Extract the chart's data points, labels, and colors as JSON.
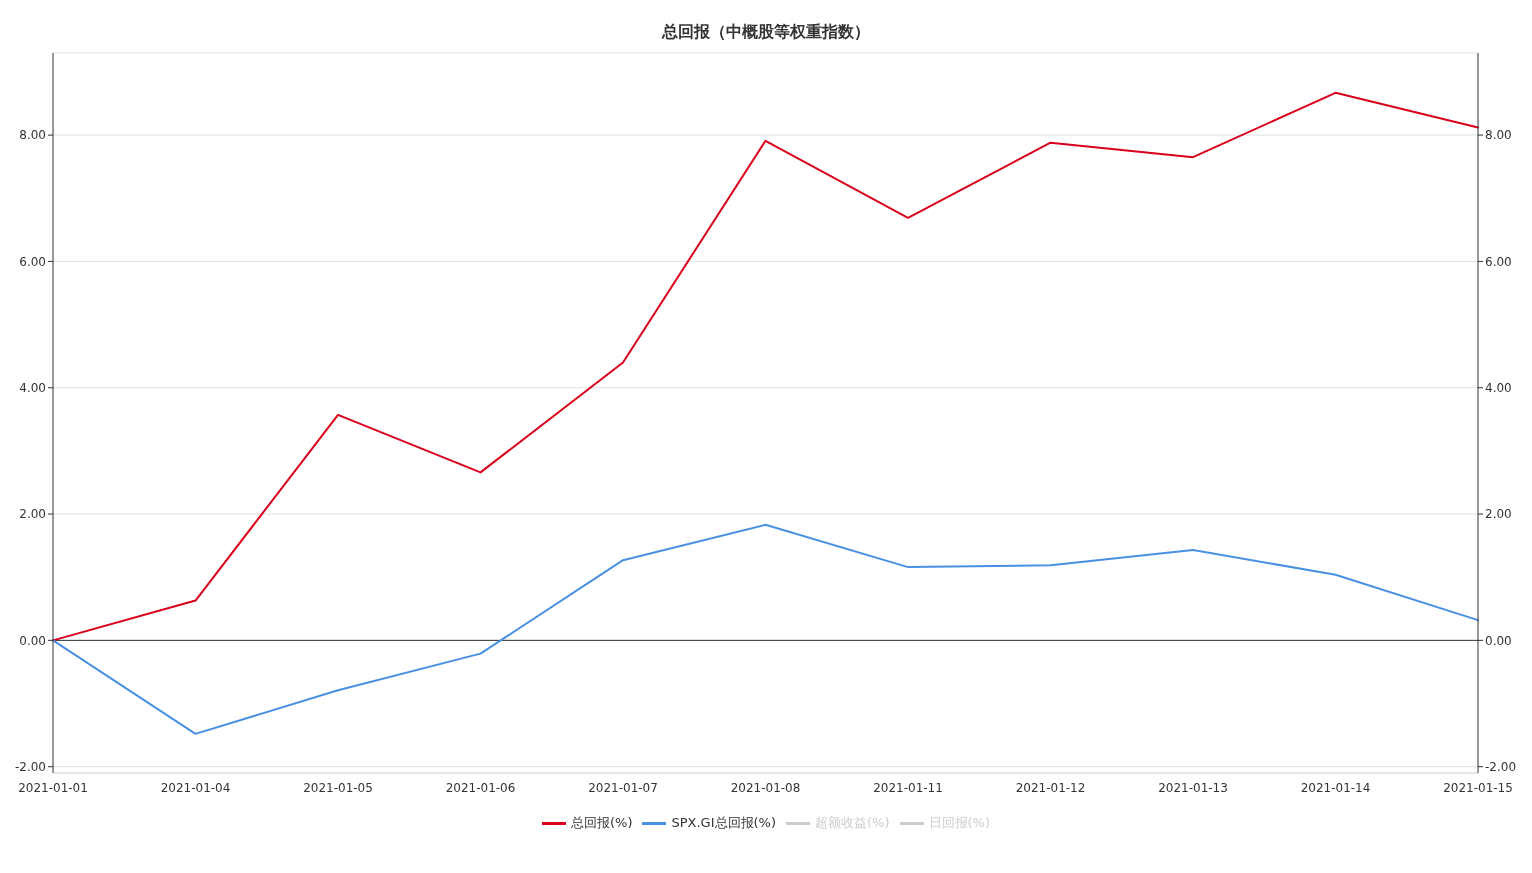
{
  "chart_data": {
    "type": "line",
    "title": "总回报（中概股等权重指数）",
    "categories": [
      "2021-01-01",
      "2021-01-04",
      "2021-01-05",
      "2021-01-06",
      "2021-01-07",
      "2021-01-08",
      "2021-01-11",
      "2021-01-12",
      "2021-01-13",
      "2021-01-14",
      "2021-01-15"
    ],
    "series": [
      {
        "name": "总回报(%)",
        "color": "#d9001b",
        "values": [
          0,
          0.63,
          3.57,
          2.66,
          4.4,
          7.91,
          6.69,
          7.88,
          7.65,
          8.67,
          8.12
        ]
      },
      {
        "name": "SPX.GI总回报(%)",
        "color": "#4a90e2",
        "values": [
          0,
          -1.48,
          -0.79,
          -0.21,
          1.27,
          1.83,
          1.16,
          1.19,
          1.43,
          1.04,
          0.32
        ]
      },
      {
        "name": "超额收益(%)",
        "color": "#cccccc",
        "values": [
          null,
          null,
          null,
          null,
          null,
          null,
          null,
          null,
          null,
          null,
          null
        ]
      },
      {
        "name": "日回报(%)",
        "color": "#cccccc",
        "values": [
          null,
          null,
          null,
          null,
          null,
          null,
          null,
          null,
          null,
          null,
          null
        ]
      }
    ],
    "ylim": [
      -2.1,
      9.3
    ],
    "yticks": [
      {
        "value": -2,
        "label": "-2.00"
      },
      {
        "value": 0,
        "label": "0.00"
      },
      {
        "value": 2,
        "label": "2.00"
      },
      {
        "value": 4,
        "label": "4.00"
      },
      {
        "value": 6,
        "label": "6.00"
      },
      {
        "value": 8,
        "label": "8.00"
      }
    ],
    "y2lim": [
      -2.1,
      9.3
    ],
    "y2ticks": [
      {
        "value": -2,
        "label": "-2.00"
      },
      {
        "value": 0,
        "label": "0.00"
      },
      {
        "value": 2,
        "label": "2.00"
      },
      {
        "value": 4,
        "label": "4.00"
      },
      {
        "value": 6,
        "label": "6.00"
      },
      {
        "value": 8,
        "label": "8.00"
      }
    ],
    "grid": "y",
    "legend": "bottom",
    "marker": "none",
    "line_style": "solid"
  }
}
